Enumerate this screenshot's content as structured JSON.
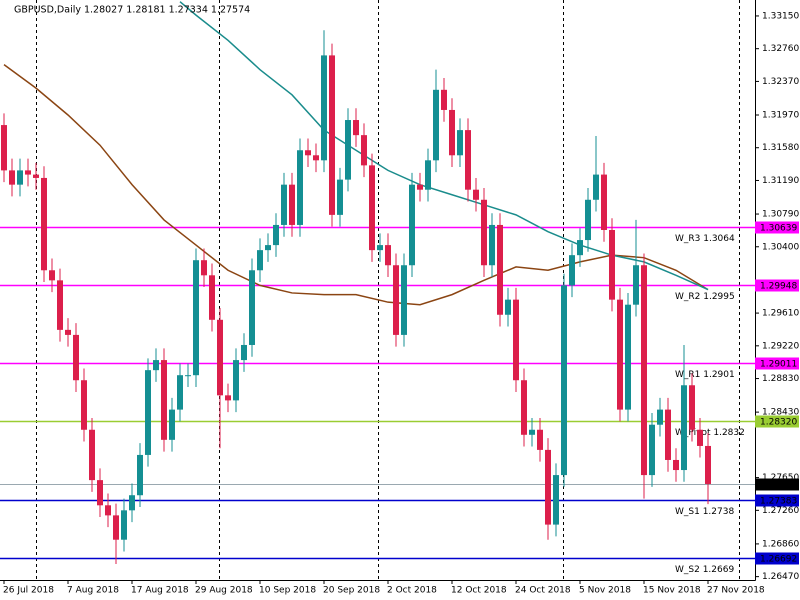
{
  "chart_data": {
    "type": "candlestick",
    "title": "GBPUSD,Daily  1.28027 1.28181 1.27334 1.27574",
    "categories": [
      "26 Jul 2018",
      null,
      null,
      null,
      null,
      null,
      null,
      null,
      "7 Aug 2018",
      null,
      null,
      null,
      null,
      null,
      null,
      null,
      "17 Aug 2018",
      null,
      null,
      null,
      null,
      null,
      null,
      null,
      "29 Aug 2018",
      null,
      null,
      null,
      null,
      null,
      null,
      null,
      "10 Sep 2018",
      null,
      null,
      null,
      null,
      null,
      null,
      null,
      "20 Sep 2018",
      null,
      null,
      null,
      null,
      null,
      null,
      null,
      "2 Oct 2018",
      null,
      null,
      null,
      null,
      null,
      null,
      null,
      "12 Oct 2018",
      null,
      null,
      null,
      null,
      null,
      null,
      null,
      "24 Oct 2018",
      null,
      null,
      null,
      null,
      null,
      null,
      null,
      "5 Nov 2018",
      null,
      null,
      null,
      null,
      null,
      null,
      null,
      "15 Nov 2018",
      null,
      null,
      null,
      null,
      null,
      null,
      null,
      "27 Nov 2018"
    ],
    "open": [
      1.3185,
      1.3131,
      1.3114,
      1.3131,
      1.3126,
      1.3122,
      1.3012,
      1.3,
      1.2941,
      1.2935,
      1.2881,
      1.2822,
      1.2762,
      1.2732,
      1.272,
      1.2691,
      1.2726,
      1.2744,
      1.2792,
      1.2893,
      1.2905,
      1.281,
      1.2846,
      1.2887,
      1.2887,
      1.3024,
      1.3006,
      1.2953,
      1.2863,
      1.2857,
      1.2905,
      1.2923,
      1.3012,
      1.3036,
      1.3042,
      1.3066,
      1.3114,
      1.3066,
      1.3155,
      1.3149,
      1.3143,
      1.3268,
      1.3078,
      1.312,
      1.3191,
      1.3173,
      1.3137,
      1.3036,
      1.3042,
      1.3018,
      1.2935,
      1.3018,
      1.3114,
      1.3108,
      1.3143,
      1.3227,
      1.3203,
      1.3149,
      1.3179,
      1.3108,
      1.3096,
      1.3018,
      1.3066,
      1.2959,
      1.2977,
      1.2881,
      1.2816,
      1.2822,
      1.2798,
      1.2709,
      1.2768,
      1.2994,
      1.303,
      1.3048,
      1.3096,
      1.3126,
      1.306,
      1.2977,
      1.2846,
      1.2971,
      1.3018,
      1.2768,
      1.2828,
      1.2846,
      1.2786,
      1.2774,
      1.2875,
      1.2822,
      1.28027
    ],
    "high": [
      1.3199,
      1.3145,
      1.3145,
      1.3145,
      1.314,
      1.3136,
      1.3026,
      1.3014,
      1.2955,
      1.2949,
      1.2895,
      1.2836,
      1.2776,
      1.2746,
      1.2734,
      1.274,
      1.2758,
      1.2806,
      1.2907,
      1.2919,
      1.2919,
      1.286,
      1.2901,
      1.2901,
      1.3038,
      1.3038,
      1.302,
      1.2967,
      1.2877,
      1.2919,
      1.2937,
      1.3026,
      1.305,
      1.3056,
      1.308,
      1.3128,
      1.3128,
      1.3169,
      1.3169,
      1.3163,
      1.3298,
      1.3282,
      1.3134,
      1.3205,
      1.3205,
      1.3187,
      1.3151,
      1.3056,
      1.3056,
      1.3032,
      1.3032,
      1.3128,
      1.3128,
      1.3157,
      1.3251,
      1.3241,
      1.3217,
      1.3193,
      1.3193,
      1.3122,
      1.311,
      1.308,
      1.308,
      1.2991,
      1.2991,
      1.2895,
      1.2836,
      1.2836,
      1.2812,
      1.2782,
      1.3008,
      1.3044,
      1.3062,
      1.311,
      1.3172,
      1.314,
      1.3074,
      1.2991,
      1.2985,
      1.3072,
      1.3032,
      1.2842,
      1.286,
      1.286,
      1.28,
      1.2923,
      1.2889,
      1.2836,
      1.28181
    ],
    "low": [
      1.3117,
      1.31,
      1.31,
      1.3112,
      1.3108,
      1.2998,
      1.2986,
      1.2927,
      1.2921,
      1.2867,
      1.2808,
      1.2748,
      1.2718,
      1.2706,
      1.2662,
      1.2677,
      1.2712,
      1.273,
      1.2778,
      1.2879,
      1.2796,
      1.2796,
      1.2832,
      1.2873,
      1.2873,
      1.2992,
      1.2939,
      1.28,
      1.2843,
      1.2843,
      1.2891,
      1.2909,
      1.2998,
      1.3022,
      1.3028,
      1.3052,
      1.3052,
      1.3052,
      1.3135,
      1.3129,
      1.3129,
      1.3064,
      1.3064,
      1.3106,
      1.3159,
      1.3123,
      1.3022,
      1.3022,
      1.3004,
      1.2921,
      1.2921,
      1.3004,
      1.3094,
      1.3094,
      1.3129,
      1.3189,
      1.3135,
      1.3135,
      1.3094,
      1.3082,
      1.3004,
      1.3004,
      1.2945,
      1.2945,
      1.2867,
      1.2802,
      1.2802,
      1.2784,
      1.2691,
      1.2695,
      1.2754,
      1.298,
      1.3016,
      1.3034,
      1.3082,
      1.3046,
      1.2963,
      1.2832,
      1.2832,
      1.2957,
      1.274,
      1.2754,
      1.2814,
      1.2772,
      1.276,
      1.276,
      1.2808,
      1.2789,
      1.27334
    ],
    "close": [
      1.3131,
      1.3114,
      1.3131,
      1.3126,
      1.3122,
      1.3012,
      1.3,
      1.2941,
      1.2935,
      1.2881,
      1.2822,
      1.2762,
      1.2732,
      1.272,
      1.2691,
      1.2726,
      1.2744,
      1.2792,
      1.2893,
      1.2905,
      1.281,
      1.2846,
      1.2887,
      1.2887,
      1.3024,
      1.3006,
      1.2953,
      1.2863,
      1.2857,
      1.2905,
      1.2923,
      1.3012,
      1.3036,
      1.3042,
      1.3066,
      1.3114,
      1.3066,
      1.3155,
      1.3149,
      1.3143,
      1.3268,
      1.3078,
      1.312,
      1.3191,
      1.3173,
      1.3137,
      1.3036,
      1.3042,
      1.3018,
      1.2935,
      1.3018,
      1.3114,
      1.3108,
      1.3143,
      1.3227,
      1.3203,
      1.3149,
      1.3179,
      1.3108,
      1.3096,
      1.3018,
      1.3066,
      1.2959,
      1.2977,
      1.2881,
      1.2816,
      1.2822,
      1.2798,
      1.2709,
      1.2768,
      1.2994,
      1.303,
      1.3048,
      1.3096,
      1.3126,
      1.306,
      1.2977,
      1.2846,
      1.2971,
      1.3018,
      1.2768,
      1.2828,
      1.2846,
      1.2786,
      1.2774,
      1.2875,
      1.2822,
      1.28027,
      1.27574
    ],
    "up_color": "#148f93",
    "down_color": "#dc1f4b",
    "moving_averages": [
      {
        "color": "#8b4513",
        "x": [
          0,
          4,
          8,
          12,
          16,
          20,
          24,
          28,
          32,
          36,
          40,
          44,
          48,
          52,
          56,
          60,
          64,
          68,
          72,
          76,
          80,
          84,
          88
        ],
        "values": [
          1.3257,
          1.3229,
          1.3197,
          1.3161,
          1.3114,
          1.3072,
          1.3042,
          1.3012,
          1.2994,
          1.2985,
          1.2983,
          1.2983,
          1.2974,
          1.2971,
          1.2983,
          1.3,
          1.3016,
          1.3012,
          1.3022,
          1.303,
          1.3027,
          1.3012,
          1.2989
        ]
      },
      {
        "color": "#1a8c8c",
        "x": [
          22,
          24,
          28,
          32,
          36,
          40,
          44,
          48,
          52,
          56,
          60,
          64,
          68,
          72,
          76,
          80,
          84,
          88
        ],
        "values": [
          1.3332,
          1.3316,
          1.3286,
          1.3251,
          1.3221,
          1.3179,
          1.3155,
          1.3131,
          1.3114,
          1.3102,
          1.309,
          1.3078,
          1.3058,
          1.3042,
          1.303,
          1.3022,
          1.3006,
          1.2989
        ]
      }
    ],
    "levels": [
      {
        "label": "W_R3 1.3064",
        "value": 1.30639,
        "value_label": "1.30639",
        "color": "#ff00ff"
      },
      {
        "label": "W_R2 1.2995",
        "value": 1.29948,
        "value_label": "1.29948",
        "color": "#ff00ff"
      },
      {
        "label": "W_R1 1.2901",
        "value": 1.29011,
        "value_label": "1.29011",
        "color": "#ff00ff"
      },
      {
        "label": "W_Pivot 1.2832",
        "value": 1.2832,
        "value_label": "1.28320",
        "color": "#9acd32"
      },
      {
        "label": "W_S1 1.2738",
        "value": 1.27383,
        "value_label": "1.27383",
        "color": "#0000cd"
      },
      {
        "label": "W_S2 1.2669",
        "value": 1.26692,
        "value_label": "1.26692",
        "color": "#0000cd"
      }
    ],
    "current_price": 1.27574,
    "ylim": [
      1.2643,
      1.3334
    ],
    "yticks": [
      {
        "value": 1.3315,
        "label": "1.33150"
      },
      {
        "value": 1.3276,
        "label": "1.32760"
      },
      {
        "value": 1.3237,
        "label": "1.32370"
      },
      {
        "value": 1.3197,
        "label": "1.31970"
      },
      {
        "value": 1.3158,
        "label": "1.31580"
      },
      {
        "value": 1.3119,
        "label": "1.31190"
      },
      {
        "value": 1.3079,
        "label": "1.30790"
      },
      {
        "value": 1.304,
        "label": "1.30400"
      },
      {
        "value": 1.2961,
        "label": "1.29610"
      },
      {
        "value": 1.2922,
        "label": "1.29220"
      },
      {
        "value": 1.2883,
        "label": "1.28830"
      },
      {
        "value": 1.2843,
        "label": "1.28430"
      },
      {
        "value": 1.2765,
        "label": "1.27650"
      },
      {
        "value": 1.2726,
        "label": "1.27260"
      },
      {
        "value": 1.2686,
        "label": "1.26860"
      },
      {
        "value": 1.2647,
        "label": "1.26470"
      }
    ]
  }
}
